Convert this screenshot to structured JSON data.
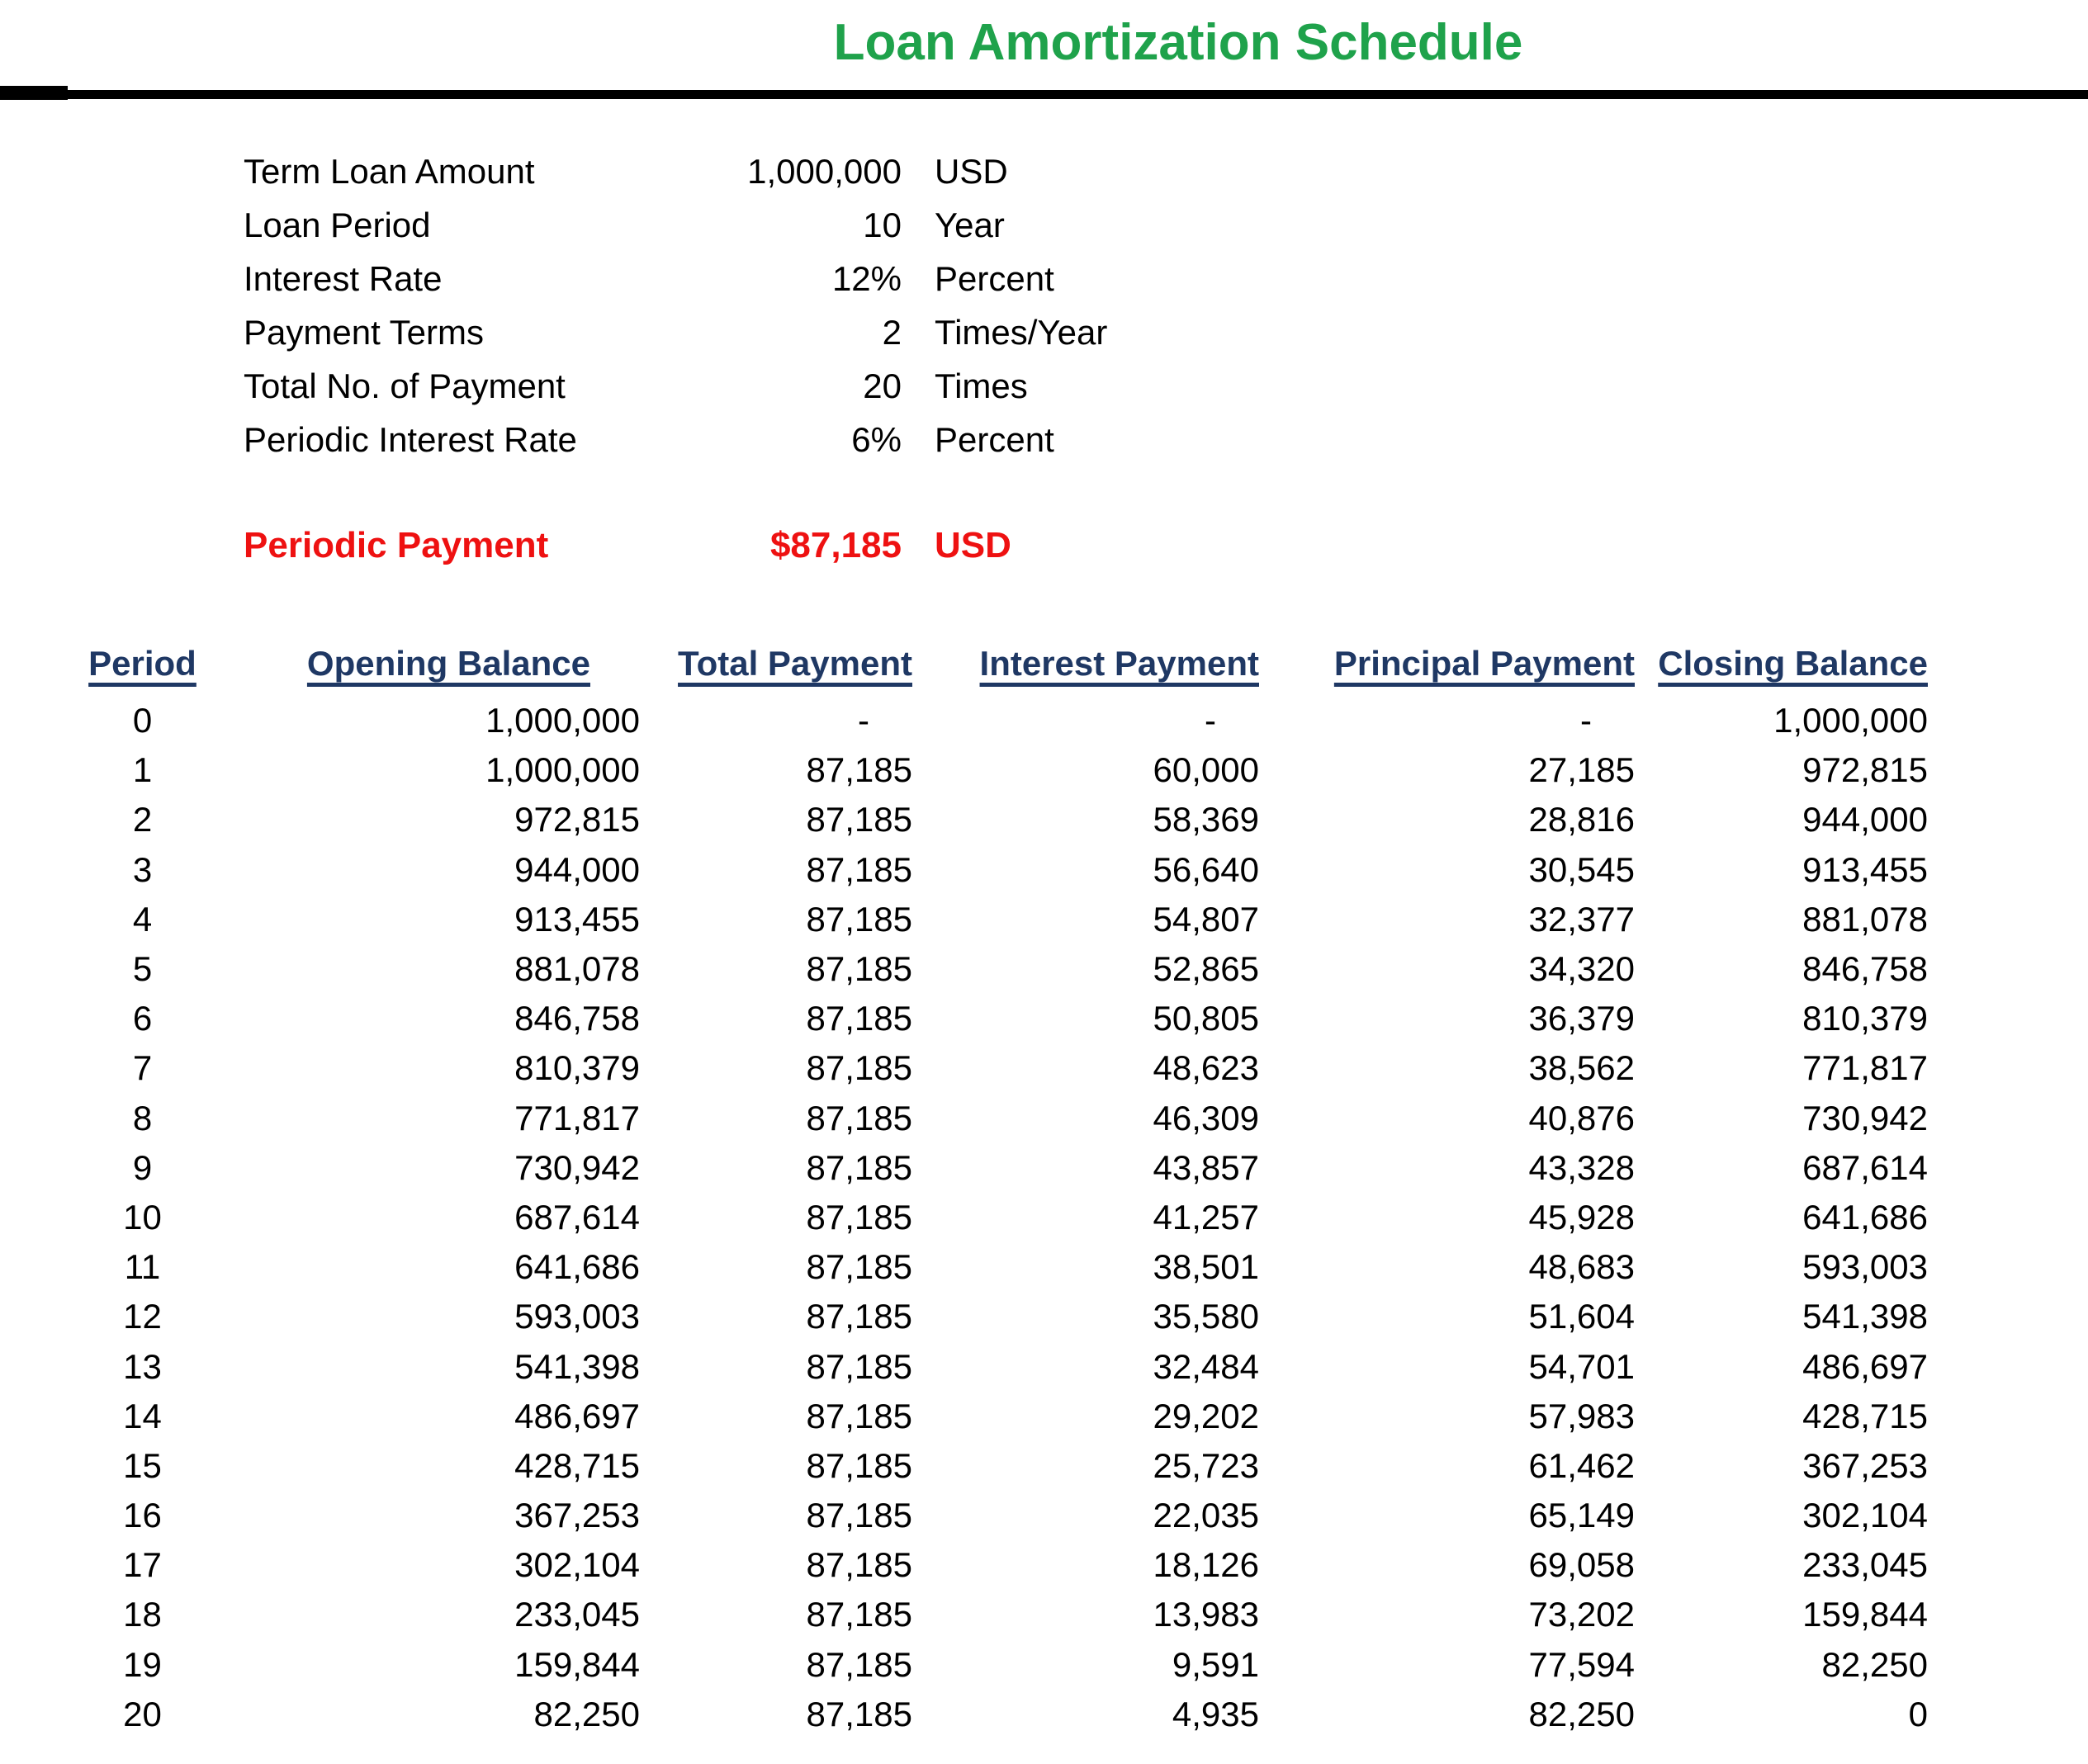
{
  "title": "Loan Amortization Schedule",
  "colors": {
    "title_green": "#1fa24b",
    "header_navy": "#1f3864",
    "accent_red": "#ee1111",
    "rule_black": "#000000",
    "background": "#ffffff"
  },
  "loan_details": [
    {
      "label": "Term Loan Amount",
      "value": "1,000,000",
      "unit": "USD"
    },
    {
      "label": "Loan Period",
      "value": "10",
      "unit": "Year"
    },
    {
      "label": "Interest Rate",
      "value": "12%",
      "unit": "Percent"
    },
    {
      "label": "Payment Terms",
      "value": "2",
      "unit": "Times/Year"
    },
    {
      "label": "Total No. of Payment",
      "value": "20",
      "unit": "Times"
    },
    {
      "label": "Periodic Interest Rate",
      "value": "6%",
      "unit": "Percent"
    }
  ],
  "periodic_payment": {
    "label": "Periodic Payment",
    "value": "$87,185",
    "unit": "USD"
  },
  "table": {
    "columns": [
      "Period",
      "Opening Balance",
      "Total Payment",
      "Interest Payment",
      "Principal Payment",
      "Closing Balance"
    ],
    "rows": [
      [
        "0",
        "1,000,000",
        "-",
        "-",
        "-",
        "1,000,000"
      ],
      [
        "1",
        "1,000,000",
        "87,185",
        "60,000",
        "27,185",
        "972,815"
      ],
      [
        "2",
        "972,815",
        "87,185",
        "58,369",
        "28,816",
        "944,000"
      ],
      [
        "3",
        "944,000",
        "87,185",
        "56,640",
        "30,545",
        "913,455"
      ],
      [
        "4",
        "913,455",
        "87,185",
        "54,807",
        "32,377",
        "881,078"
      ],
      [
        "5",
        "881,078",
        "87,185",
        "52,865",
        "34,320",
        "846,758"
      ],
      [
        "6",
        "846,758",
        "87,185",
        "50,805",
        "36,379",
        "810,379"
      ],
      [
        "7",
        "810,379",
        "87,185",
        "48,623",
        "38,562",
        "771,817"
      ],
      [
        "8",
        "771,817",
        "87,185",
        "46,309",
        "40,876",
        "730,942"
      ],
      [
        "9",
        "730,942",
        "87,185",
        "43,857",
        "43,328",
        "687,614"
      ],
      [
        "10",
        "687,614",
        "87,185",
        "41,257",
        "45,928",
        "641,686"
      ],
      [
        "11",
        "641,686",
        "87,185",
        "38,501",
        "48,683",
        "593,003"
      ],
      [
        "12",
        "593,003",
        "87,185",
        "35,580",
        "51,604",
        "541,398"
      ],
      [
        "13",
        "541,398",
        "87,185",
        "32,484",
        "54,701",
        "486,697"
      ],
      [
        "14",
        "486,697",
        "87,185",
        "29,202",
        "57,983",
        "428,715"
      ],
      [
        "15",
        "428,715",
        "87,185",
        "25,723",
        "61,462",
        "367,253"
      ],
      [
        "16",
        "367,253",
        "87,185",
        "22,035",
        "65,149",
        "302,104"
      ],
      [
        "17",
        "302,104",
        "87,185",
        "18,126",
        "69,058",
        "233,045"
      ],
      [
        "18",
        "233,045",
        "87,185",
        "13,983",
        "73,202",
        "159,844"
      ],
      [
        "19",
        "159,844",
        "87,185",
        "9,591",
        "77,594",
        "82,250"
      ],
      [
        "20",
        "82,250",
        "87,185",
        "4,935",
        "82,250",
        "0"
      ]
    ]
  }
}
